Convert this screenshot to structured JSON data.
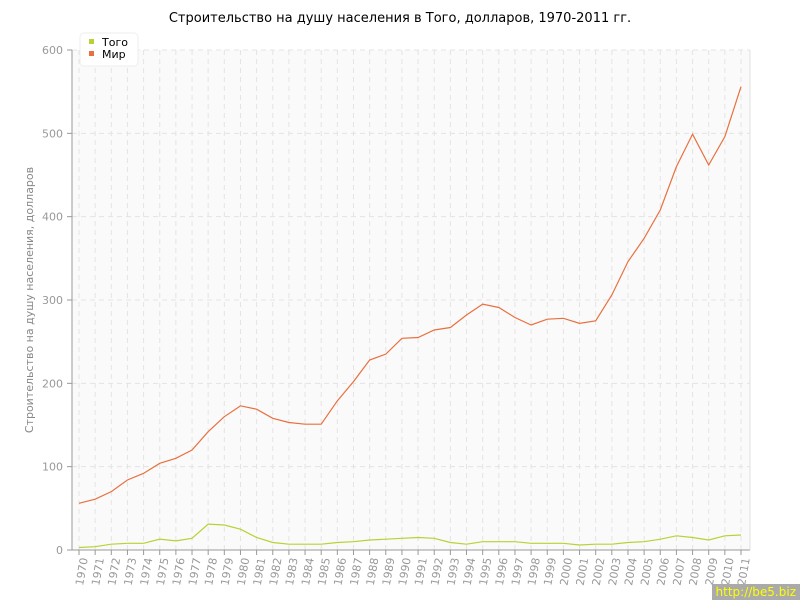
{
  "chart_data": {
    "type": "line",
    "title": "Строительство на душу населения в Того, долларов, 1970-2011 гг.",
    "xlabel": "",
    "ylabel": "Строительство на душу населения, долларов",
    "ylim": [
      0,
      600
    ],
    "yticks": [
      0,
      100,
      200,
      300,
      400,
      500,
      600
    ],
    "grid": true,
    "legend_position": "top-left",
    "x": [
      1970,
      1971,
      1972,
      1973,
      1974,
      1975,
      1976,
      1977,
      1978,
      1979,
      1980,
      1981,
      1982,
      1983,
      1984,
      1985,
      1986,
      1987,
      1988,
      1989,
      1990,
      1991,
      1992,
      1993,
      1994,
      1995,
      1996,
      1997,
      1998,
      1999,
      2000,
      2001,
      2002,
      2003,
      2004,
      2005,
      2006,
      2007,
      2008,
      2009,
      2010,
      2011
    ],
    "series": [
      {
        "name": "Того",
        "color": "#b5d334",
        "values": [
          3,
          4,
          7,
          8,
          8,
          13,
          11,
          14,
          31,
          30,
          25,
          15,
          9,
          7,
          7,
          7,
          9,
          10,
          12,
          13,
          14,
          15,
          14,
          9,
          7,
          10,
          10,
          10,
          8,
          8,
          8,
          6,
          7,
          7,
          9,
          10,
          13,
          17,
          15,
          12,
          17,
          18
        ]
      },
      {
        "name": "Мир",
        "color": "#e8703f",
        "values": [
          56,
          61,
          70,
          84,
          92,
          104,
          110,
          120,
          142,
          160,
          173,
          169,
          158,
          153,
          151,
          151,
          179,
          202,
          228,
          235,
          254,
          255,
          264,
          267,
          282,
          295,
          291,
          279,
          270,
          277,
          278,
          272,
          275,
          306,
          346,
          374,
          408,
          460,
          499,
          462,
          496,
          556
        ]
      }
    ]
  },
  "watermark": "http://be5.biz"
}
